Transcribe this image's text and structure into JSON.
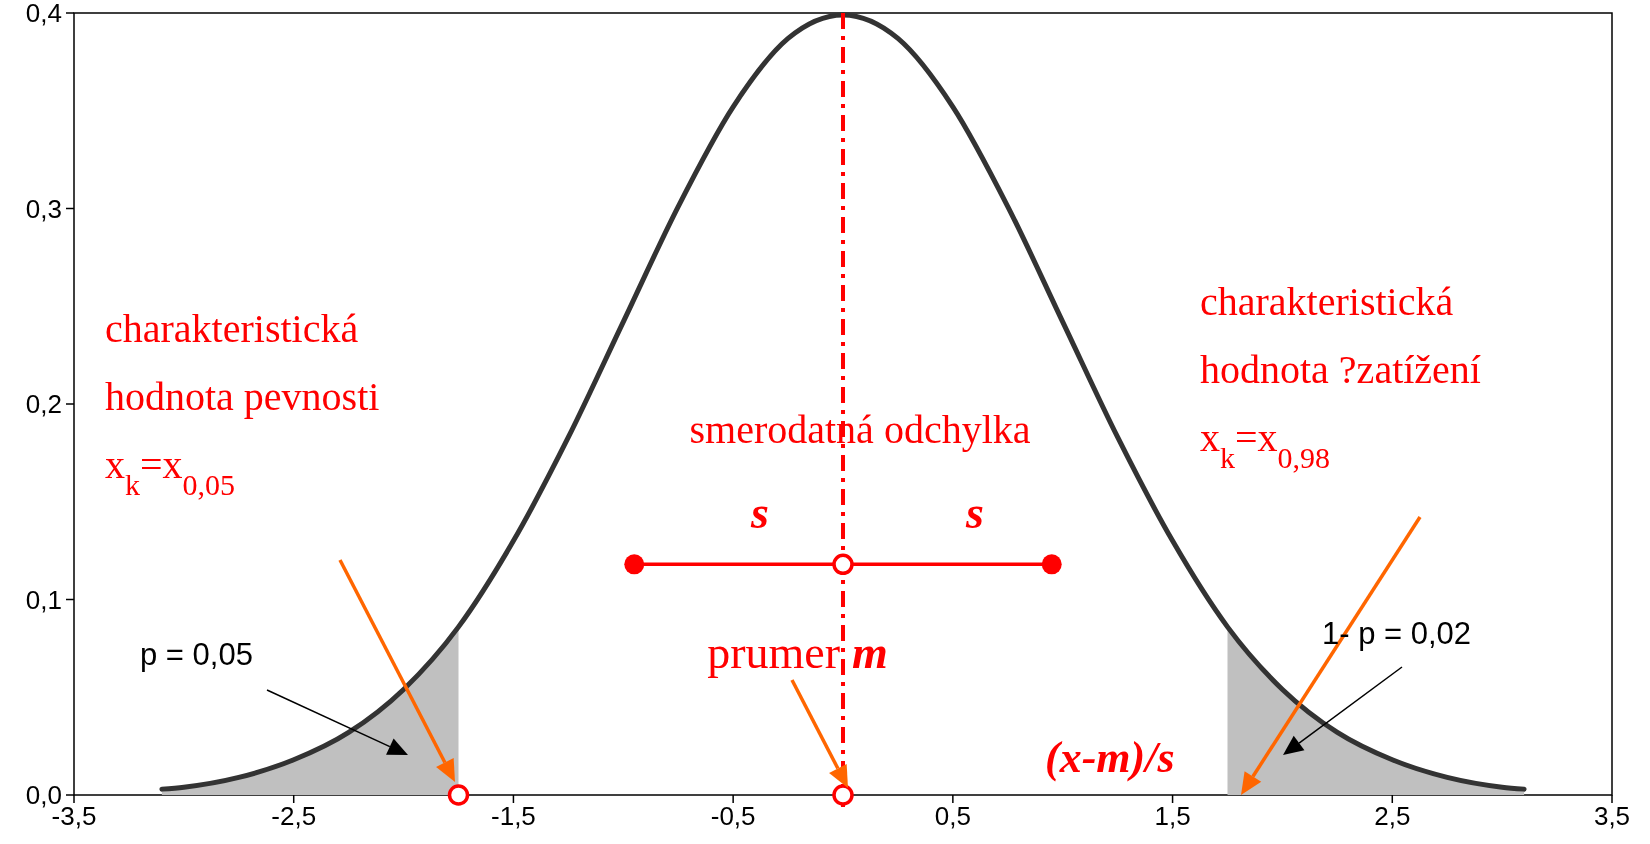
{
  "chart_data": {
    "type": "line",
    "xlim": [
      -3.5,
      3.5
    ],
    "ylim": [
      0,
      0.4
    ],
    "xticks": [
      {
        "value": -3.5,
        "label": "-3,5"
      },
      {
        "value": -2.5,
        "label": "-2,5"
      },
      {
        "value": -1.5,
        "label": "-1,5"
      },
      {
        "value": -0.5,
        "label": "-0,5"
      },
      {
        "value": 0.5,
        "label": "0,5"
      },
      {
        "value": 1.5,
        "label": "1,5"
      },
      {
        "value": 2.5,
        "label": "2,5"
      },
      {
        "value": 3.5,
        "label": "3,5"
      }
    ],
    "yticks": [
      {
        "value": 0,
        "label": "0,0"
      },
      {
        "value": 0.1,
        "label": "0,1"
      },
      {
        "value": 0.2,
        "label": "0,2"
      },
      {
        "value": 0.3,
        "label": "0,3"
      },
      {
        "value": 0.4,
        "label": "0,4"
      }
    ],
    "grid": false,
    "series": [
      {
        "type": "area",
        "color": "#c0c0c0",
        "x": [
          -3.1,
          -3,
          -2.75,
          -2.5,
          -2.25,
          -2,
          -1.75
        ],
        "values": [
          0.003,
          0.004,
          0.009,
          0.018,
          0.032,
          0.054,
          0.086
        ]
      },
      {
        "type": "area",
        "color": "#c0c0c0",
        "x": [
          1.75,
          2,
          2.25,
          2.5,
          2.75,
          3,
          3.1
        ],
        "values": [
          0.086,
          0.054,
          0.032,
          0.018,
          0.009,
          0.004,
          0.003
        ]
      },
      {
        "color": "#333333",
        "marker": "none",
        "x": [
          -3.1,
          -3,
          -2.75,
          -2.5,
          -2.25,
          -2,
          -1.75,
          -1.5,
          -1.25,
          -1,
          -0.75,
          -0.5,
          -0.25,
          0,
          0.25,
          0.5,
          0.75,
          1,
          1.25,
          1.5,
          1.75,
          2,
          2.25,
          2.5,
          2.75,
          3,
          3.1
        ],
        "values": [
          0.003,
          0.004,
          0.009,
          0.018,
          0.032,
          0.054,
          0.086,
          0.13,
          0.183,
          0.242,
          0.301,
          0.352,
          0.387,
          0.399,
          0.387,
          0.352,
          0.301,
          0.242,
          0.183,
          0.13,
          0.086,
          0.054,
          0.032,
          0.018,
          0.009,
          0.004,
          0.003
        ]
      },
      {
        "type": "line",
        "color": "#ff0000",
        "marker": "circle",
        "x": [
          -0.95,
          0.95
        ],
        "values": [
          0.118,
          0.118
        ]
      },
      {
        "type": "scatter",
        "color": "#ff0000",
        "marker": "circle",
        "x": [
          -1.75,
          0,
          0
        ],
        "values": [
          0,
          0,
          0.118
        ]
      }
    ],
    "ref_lines": [
      {
        "axis": "x",
        "value": 0,
        "color": "#ff0000",
        "line_style": "dashed"
      }
    ],
    "annotations": [
      "charakteristická\nhodnota pevnosti\nx$_{k}$=x$_{0,05}$",
      "charakteristická\nhodnota ?zatížení\nx$_{k}$=x$_{0,98}$",
      "smerodatná odchylka",
      "s",
      "s",
      "prumer",
      "m",
      "(x-m)/s",
      "p = 0,05",
      "1- p = 0,02"
    ]
  }
}
